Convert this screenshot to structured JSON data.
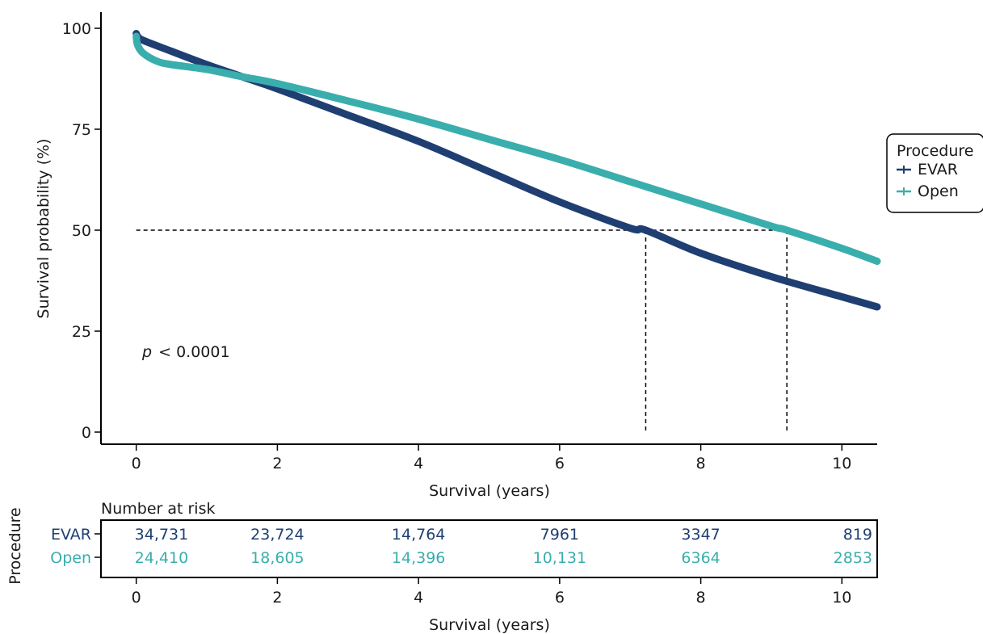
{
  "chart_data": {
    "type": "line",
    "title": "",
    "xlabel": "Survival (years)",
    "ylabel": "Survival probability (%)",
    "xlim": [
      -0.5,
      10.5
    ],
    "ylim": [
      -3,
      104
    ],
    "x_ticks": [
      "0",
      "2",
      "4",
      "6",
      "8",
      "10"
    ],
    "y_ticks": [
      "0",
      "25",
      "50",
      "75",
      "100"
    ],
    "grid": false,
    "annotation": {
      "prefix": "p",
      "text": "< 0.0001"
    },
    "median_line_y": 50,
    "series": [
      {
        "name": "EVAR",
        "color": "#1f3f73",
        "x": [
          0,
          0.02,
          0.1,
          0.5,
          1,
          1.5,
          2,
          3,
          4,
          5,
          6,
          7,
          7.22,
          8,
          9,
          10,
          10.5
        ],
        "y": [
          98.7,
          98,
          97,
          94.3,
          91,
          88,
          85,
          78.5,
          72,
          64.5,
          57,
          50.5,
          50,
          44.3,
          38.5,
          33.5,
          31
        ],
        "median": 7.22
      },
      {
        "name": "Open",
        "color": "#3aaead",
        "x": [
          0,
          0.02,
          0.1,
          0.3,
          0.5,
          1,
          1.5,
          2,
          3,
          4,
          5,
          6,
          7,
          8,
          9,
          9.22,
          10,
          10.5
        ],
        "y": [
          98,
          95.8,
          93.8,
          91.8,
          91,
          89.8,
          88,
          86.3,
          82,
          77.5,
          72.5,
          67.5,
          62,
          56.5,
          51,
          50,
          45.5,
          42.3
        ],
        "median": 9.22
      }
    ],
    "legend": {
      "title": "Procedure",
      "position": "right"
    },
    "risk_table": {
      "title": "Number at risk",
      "ylabel": "Procedure",
      "xlabel": "Survival (years)",
      "times": [
        0,
        2,
        4,
        6,
        8,
        10
      ],
      "rows": [
        {
          "name": "EVAR",
          "color": "#1f3f73",
          "values": [
            "34,731",
            "23,724",
            "14,764",
            "7961",
            "3347",
            "819"
          ]
        },
        {
          "name": "Open",
          "color": "#3aaead",
          "values": [
            "24,410",
            "18,605",
            "14,396",
            "10,131",
            "6364",
            "2853"
          ]
        }
      ]
    }
  }
}
